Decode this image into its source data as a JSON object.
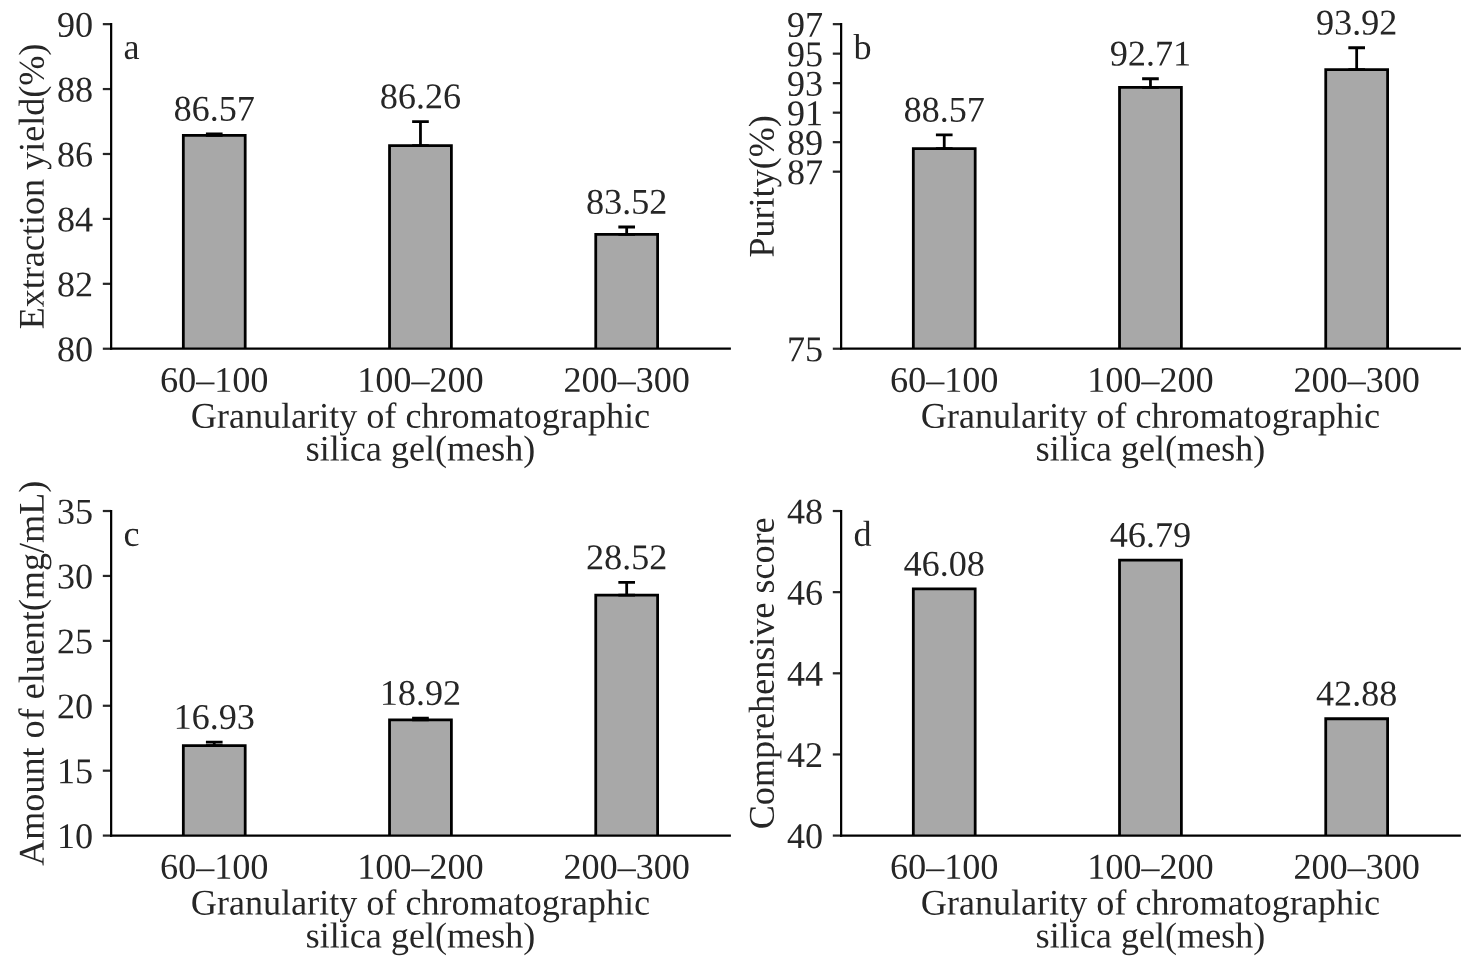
{
  "chart_data": [
    {
      "type": "bar",
      "categories": [
        "60–100",
        "100–200",
        "200–300"
      ],
      "values": [
        86.57,
        86.26,
        83.52
      ],
      "color": "#a8a8a8",
      "errors": [
        [
          86.57,
          86.62
        ],
        [
          86.26,
          87.0
        ],
        [
          83.52,
          83.75
        ]
      ],
      "xlabel": "Granularity of chromatographic\nsilica gel(mesh)",
      "ylabel": "Extraction yield(%)",
      "ylim": [
        80,
        90
      ],
      "yticks": [
        80,
        82,
        84,
        86,
        88,
        90
      ],
      "data_labels": true,
      "grid": false,
      "legend": false,
      "annotations": [
        "a"
      ]
    },
    {
      "type": "bar",
      "categories": [
        "60–100",
        "100–200",
        "200–300"
      ],
      "values": [
        88.57,
        92.71,
        93.92
      ],
      "color": "#a8a8a8",
      "errors": [
        [
          88.57,
          89.5
        ],
        [
          92.71,
          93.3
        ],
        [
          93.92,
          95.4
        ]
      ],
      "xlabel": "Granularity of chromatographic\nsilica gel(mesh)",
      "ylabel": "Purity(%)",
      "ylim": [
        75,
        97
      ],
      "yticks": [
        75,
        87,
        89,
        91,
        93,
        95,
        97
      ],
      "data_labels": true,
      "grid": false,
      "legend": false,
      "annotations": [
        "b"
      ]
    },
    {
      "type": "bar",
      "categories": [
        "60–100",
        "100–200",
        "200–300"
      ],
      "values": [
        16.93,
        18.92,
        28.52
      ],
      "color": "#a8a8a8",
      "errors": [
        [
          16.93,
          17.2
        ],
        [
          18.92,
          19.05
        ],
        [
          28.52,
          29.5
        ]
      ],
      "xlabel": "Granularity of chromatographic\nsilica gel(mesh)",
      "ylabel": "Amount of eluent(mg/mL)",
      "ylim": [
        10,
        35
      ],
      "yticks": [
        10,
        15,
        20,
        25,
        30,
        35
      ],
      "data_labels": true,
      "grid": false,
      "legend": false,
      "annotations": [
        "c"
      ]
    },
    {
      "type": "bar",
      "categories": [
        "60–100",
        "100–200",
        "200–300"
      ],
      "values": [
        46.08,
        46.79,
        42.88
      ],
      "color": "#a8a8a8",
      "xlabel": "Granularity of chromatographic\nsilica gel(mesh)",
      "ylabel": "Comprehensive score",
      "ylim": [
        40,
        48
      ],
      "yticks": [
        40,
        42,
        44,
        46,
        48
      ],
      "data_labels": true,
      "grid": false,
      "legend": false,
      "annotations": [
        "d"
      ]
    }
  ]
}
